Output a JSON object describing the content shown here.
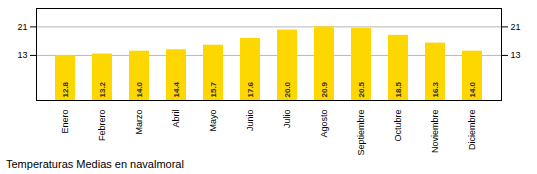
{
  "chart_data": {
    "type": "bar",
    "title": "Temperaturas Medias en navalmoral",
    "categories": [
      "Enero",
      "Febrero",
      "Marzo",
      "Abril",
      "Mayo",
      "Junio",
      "Julio",
      "Agosto",
      "Septiembre",
      "Octubre",
      "Noviembre",
      "Diciembre"
    ],
    "values": [
      12.8,
      13.2,
      14.0,
      14.4,
      15.7,
      17.6,
      20.0,
      20.9,
      20.5,
      18.5,
      16.3,
      14.0
    ],
    "value_labels": [
      "12.8",
      "13.2",
      "14.0",
      "14.4",
      "15.7",
      "17.6",
      "20.0",
      "20.9",
      "20.5",
      "18.5",
      "16.3",
      "14.0"
    ],
    "color": "#FFD700",
    "ylim": [
      0,
      26.125
    ],
    "yticks": [
      12.8,
      20.9
    ],
    "grid": true,
    "data_labels": true
  }
}
